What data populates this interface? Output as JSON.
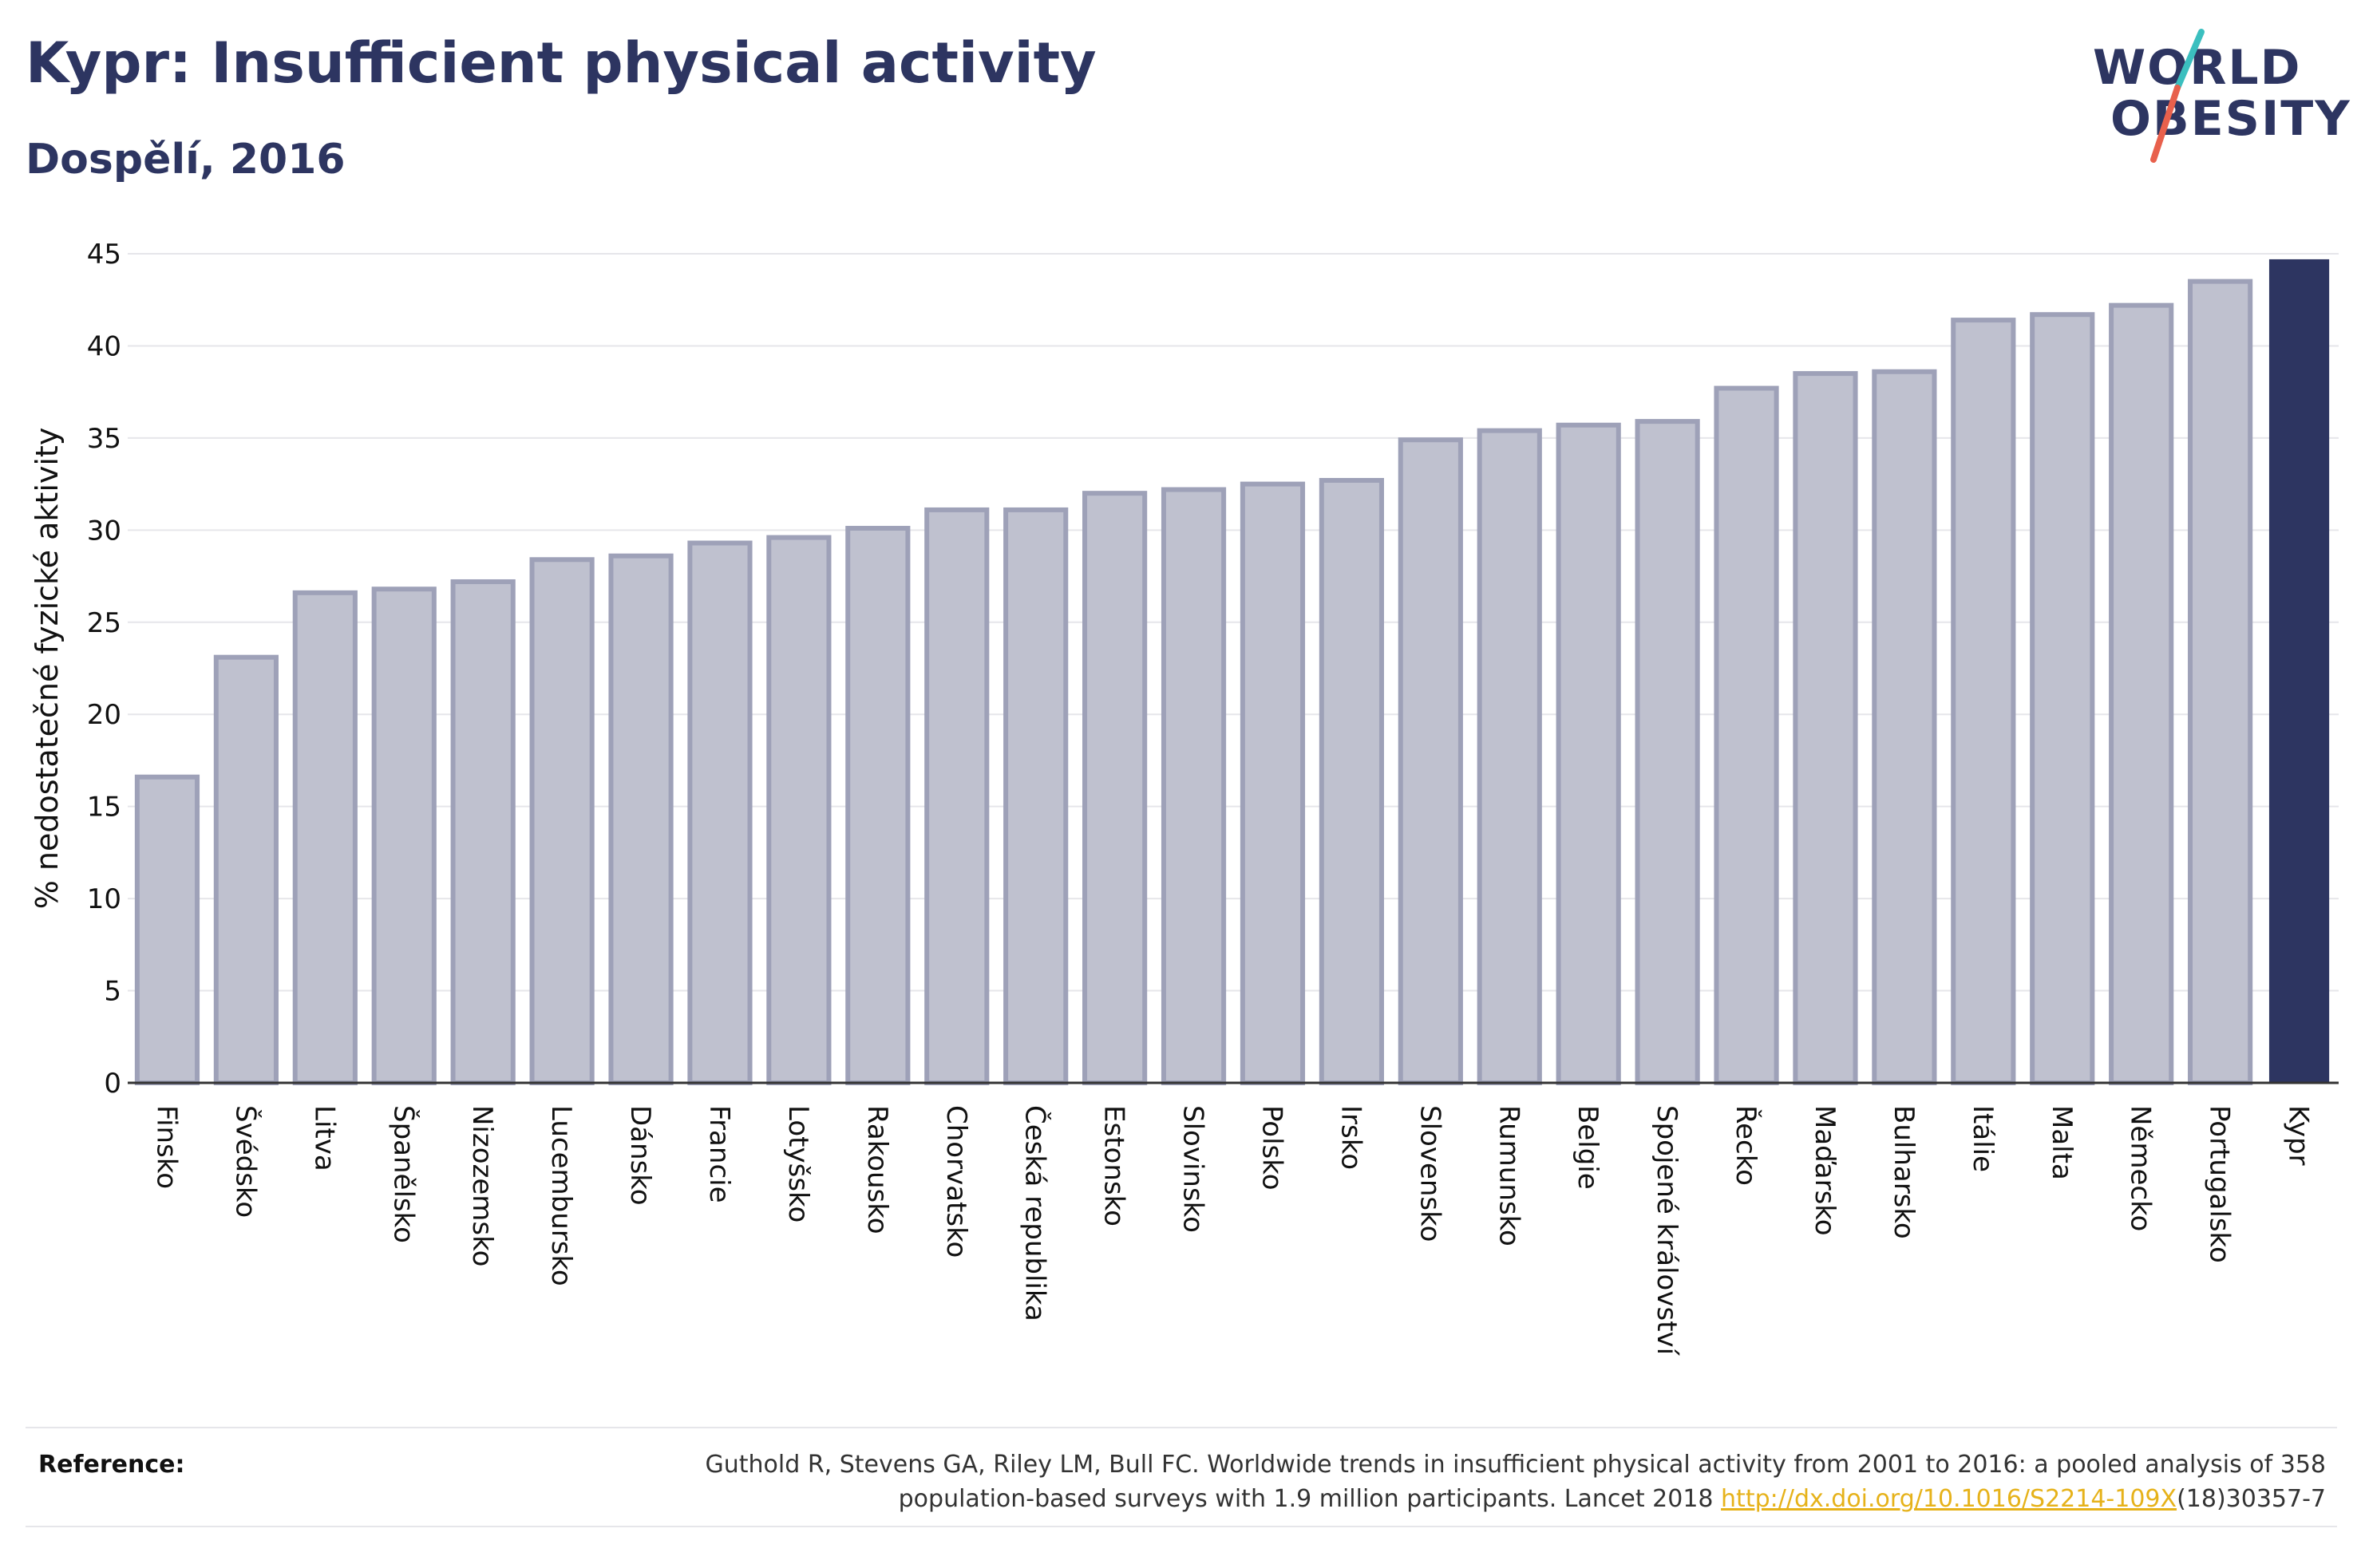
{
  "header": {
    "title": "Kypr: Insufficient physical activity",
    "subtitle": "Dospělí, 2016"
  },
  "logo": {
    "line1": "WORLD",
    "line2": "OBESITY",
    "accent_teal": "#3bbfbf",
    "accent_red": "#e8604c"
  },
  "colors": {
    "bar_fill": "#bfc1cf",
    "bar_stroke": "#9ea1b8",
    "highlight": "#2d3561",
    "grid": "#e6e6ea",
    "axis": "#333333"
  },
  "chart_data": {
    "type": "bar",
    "ylabel": "% nedostatečné fyzické aktivity",
    "ylim": [
      0,
      45
    ],
    "yticks": [
      0,
      5,
      10,
      15,
      20,
      25,
      30,
      35,
      40,
      45
    ],
    "grid": true,
    "highlight_category": "Kypr",
    "categories": [
      "Finsko",
      "Švédsko",
      "Litva",
      "Španělsko",
      "Nizozemsko",
      "Lucembursko",
      "Dánsko",
      "Francie",
      "Lotyšsko",
      "Rakousko",
      "Chorvatsko",
      "Česká republika",
      "Estonsko",
      "Slovinsko",
      "Polsko",
      "Irsko",
      "Slovensko",
      "Rumunsko",
      "Belgie",
      "Spojené království",
      "Řecko",
      "Maďarsko",
      "Bulharsko",
      "Itálie",
      "Malta",
      "Německo",
      "Portugalsko",
      "Kypr"
    ],
    "values": [
      16.6,
      23.1,
      26.6,
      26.8,
      27.2,
      28.4,
      28.6,
      29.3,
      29.6,
      30.1,
      31.1,
      31.1,
      32.0,
      32.2,
      32.5,
      32.7,
      34.9,
      35.4,
      35.7,
      35.9,
      37.7,
      38.5,
      38.6,
      41.4,
      41.7,
      42.2,
      43.5,
      44.7
    ]
  },
  "footer": {
    "reference_label": "Reference:",
    "reference_text_1": "Guthold R, Stevens GA, Riley LM, Bull FC. Worldwide trends in insufficient physical activity from 2001 to 2016: a pooled analysis of 358 population-based surveys with 1.9 million participants. Lancet 2018 ",
    "reference_link": "http://dx.doi.org/10.1016/S2214-109X",
    "reference_text_2": "(18)30357-7"
  }
}
